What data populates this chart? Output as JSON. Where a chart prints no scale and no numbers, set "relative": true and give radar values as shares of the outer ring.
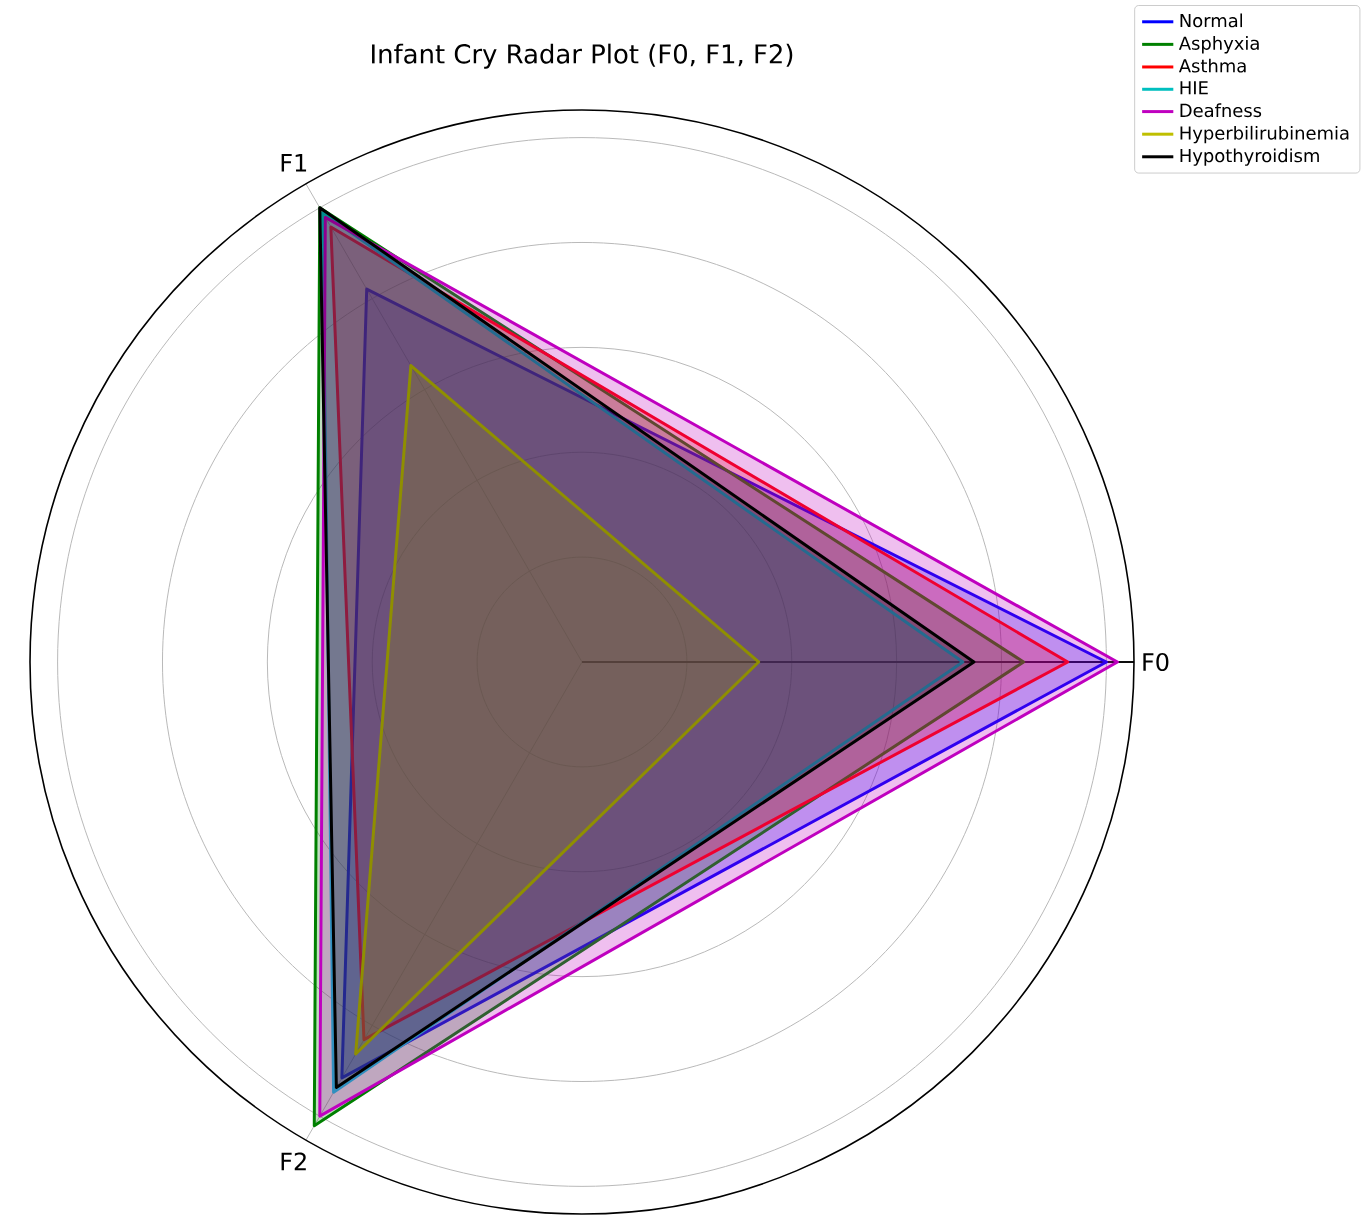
{
  "chart_data": {
    "type": "radar",
    "title": "Infant Cry Radar Plot (F0, F1, F2)",
    "relative": true,
    "categories": [
      "F0",
      "F2",
      "F1"
    ],
    "grid": true,
    "legend": "top right",
    "marker": "none",
    "line_style": "solid",
    "series": [
      {
        "name": "Normal",
        "color": "#0000ff",
        "values": [
          0.95,
          0.87,
          0.78
        ]
      },
      {
        "name": "Asphyxia",
        "color": "#008000",
        "values": [
          0.8,
          0.97,
          0.95
        ]
      },
      {
        "name": "Asthma",
        "color": "#ff0000",
        "values": [
          0.88,
          0.79,
          0.91
        ]
      },
      {
        "name": "HIE",
        "color": "#00bfbf",
        "values": [
          0.69,
          0.9,
          0.94
        ]
      },
      {
        "name": "Deafness",
        "color": "#bf00bf",
        "values": [
          0.97,
          0.95,
          0.93
        ]
      },
      {
        "name": "Hyperbilirubinemia",
        "color": "#bfbf00",
        "values": [
          0.32,
          0.82,
          0.62
        ]
      },
      {
        "name": "Hypothyroidism",
        "color": "#000000",
        "values": [
          0.71,
          0.89,
          0.95
        ]
      }
    ]
  }
}
